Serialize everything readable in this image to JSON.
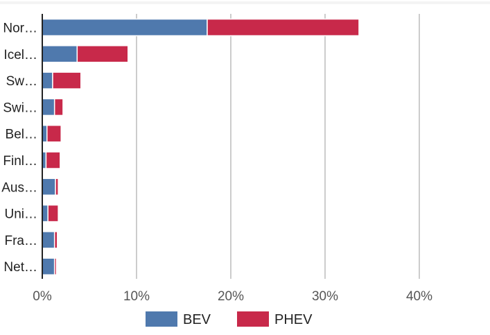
{
  "chart_data": {
    "type": "bar",
    "orientation": "horizontal",
    "stacked": true,
    "categories": [
      "Nor…",
      "Icel…",
      "Sw…",
      "Swi…",
      "Bel…",
      "Finl…",
      "Aus…",
      "Uni…",
      "Fra…",
      "Net…"
    ],
    "series": [
      {
        "name": "BEV",
        "color": "#4f79ad",
        "values": [
          17.5,
          3.7,
          1.1,
          1.3,
          0.5,
          0.4,
          1.4,
          0.6,
          1.3,
          1.3
        ]
      },
      {
        "name": "PHEV",
        "color": "#c8294a",
        "values": [
          16.1,
          5.4,
          3.0,
          0.9,
          1.5,
          1.5,
          0.3,
          1.1,
          0.3,
          0.2
        ]
      }
    ],
    "xlim": [
      0,
      45
    ],
    "xticks": [
      0,
      10,
      20,
      30,
      40
    ],
    "xtick_labels": [
      "0%",
      "10%",
      "20%",
      "30%",
      "40%"
    ],
    "grid": "vertical",
    "legend_position": "bottom-center",
    "xlabel": "",
    "ylabel": "",
    "title": ""
  }
}
